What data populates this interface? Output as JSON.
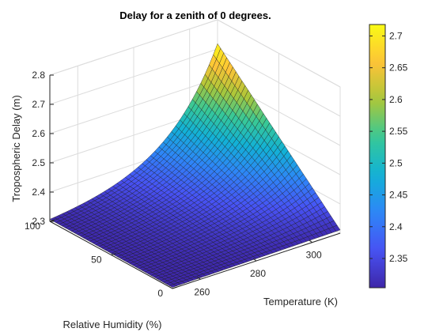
{
  "chart_data": {
    "type": "surface",
    "title": "Delay for a zenith of 0 degrees.",
    "xlabel": "Temperature (K)",
    "ylabel": "Relative Humidity (%)",
    "zlabel": "Tropospheric Delay (m)",
    "x_range": [
      250,
      310
    ],
    "y_range": [
      0,
      100
    ],
    "zlim": [
      2.3,
      2.8
    ],
    "x_ticks": [
      {
        "v": 260,
        "label": "260"
      },
      {
        "v": 280,
        "label": "280"
      },
      {
        "v": 300,
        "label": "300"
      }
    ],
    "y_ticks": [
      {
        "v": 0,
        "label": "0"
      },
      {
        "v": 50,
        "label": "50"
      },
      {
        "v": 100,
        "label": "100"
      }
    ],
    "z_ticks": [
      {
        "v": 2.3,
        "label": "2.3"
      },
      {
        "v": 2.4,
        "label": "2.4"
      },
      {
        "v": 2.5,
        "label": "2.5"
      },
      {
        "v": 2.6,
        "label": "2.6"
      },
      {
        "v": 2.7,
        "label": "2.7"
      },
      {
        "v": 2.8,
        "label": "2.8"
      }
    ],
    "grid_count": 40,
    "surface_corners": {
      "t250_rh0": 2.304,
      "t310_rh0": 2.311,
      "t250_rh100": 2.307,
      "t310_rh100": 2.718
    },
    "colorbar": {
      "colormap": "parula",
      "range": [
        2.304,
        2.718
      ],
      "ticks": [
        {
          "v": 2.35,
          "label": "2.35"
        },
        {
          "v": 2.4,
          "label": "2.4"
        },
        {
          "v": 2.45,
          "label": "2.45"
        },
        {
          "v": 2.5,
          "label": "2.5"
        },
        {
          "v": 2.55,
          "label": "2.55"
        },
        {
          "v": 2.6,
          "label": "2.6"
        },
        {
          "v": 2.65,
          "label": "2.65"
        },
        {
          "v": 2.7,
          "label": "2.7"
        }
      ]
    },
    "grid": true
  }
}
